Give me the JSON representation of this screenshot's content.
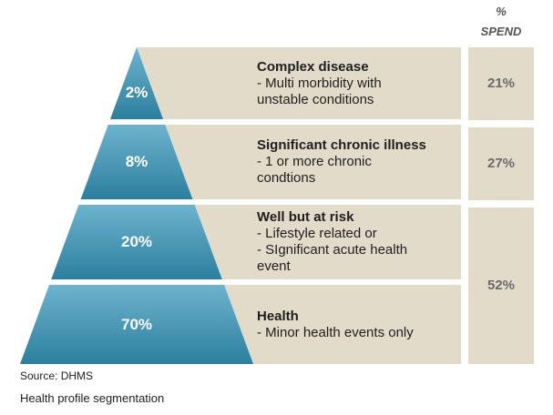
{
  "header": {
    "symbol": "%",
    "label": "SPEND"
  },
  "colors": {
    "panel": "#e3dbc9",
    "tier_top": "#6db3ce",
    "tier_bottom": "#2c7f9e"
  },
  "tiers": [
    {
      "percent": "2%",
      "title": "Complex disease",
      "lines": [
        "- Multi morbidity with",
        "unstable conditions"
      ]
    },
    {
      "percent": "8%",
      "title": "Significant chronic illness",
      "lines": [
        "- 1 or more chronic",
        "condtions"
      ]
    },
    {
      "percent": "20%",
      "title": "Well but at risk",
      "lines": [
        "- Lifestyle related or",
        "- SIgnificant acute health",
        "event"
      ]
    },
    {
      "percent": "70%",
      "title": "Health",
      "lines": [
        "- Minor health events only"
      ]
    }
  ],
  "spend": [
    {
      "value": "21%"
    },
    {
      "value": "27%"
    },
    {
      "value": "52%"
    }
  ],
  "source": "Source: DHMS",
  "caption": "Health profile segmentation"
}
